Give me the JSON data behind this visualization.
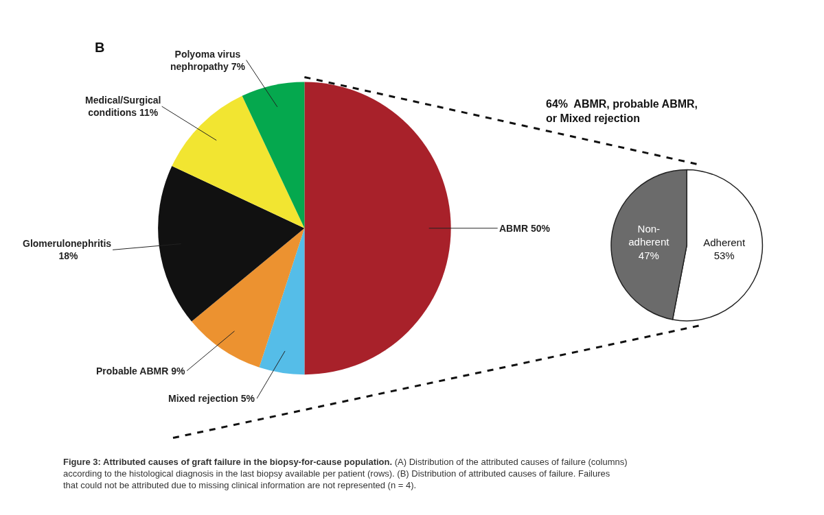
{
  "chart_data": [
    {
      "type": "pie",
      "title": "B",
      "categories": [
        "ABMR",
        "Mixed rejection",
        "Probable ABMR",
        "Glomerulonephritis\n",
        "Medical/Surgical\nconditions",
        "Polyoma virus\nnephropathy"
      ],
      "values": [
        50,
        5,
        9,
        18,
        11,
        7
      ],
      "colors": [
        "#a8212a",
        "#55bde8",
        "#ec9230",
        "#111111",
        "#f2e531",
        "#05a84e"
      ],
      "value_labels": [
        "50%",
        "5%",
        "9%",
        "18%",
        "11%",
        "7%"
      ],
      "annotations": [
        "Figure 3: Attributed causes of graft failure in the biopsy-for-cause population.",
        "(A) Distribution of the attributed causes of failure (columns) according to the histological diagnosis in the last biopsy available per patient (rows).  (B) Distribution of attributed causes of failure. Failures that could not be attributed due to missing clinical information are not represented (n = 4)."
      ]
    },
    {
      "type": "pie",
      "title": "64%  ABMR, probable ABMR,\nor Mixed rejection",
      "categories": [
        "Adherent",
        "Non-\nadherent"
      ],
      "values": [
        53,
        47
      ],
      "colors": [
        "#ffffff",
        "#6b6b6b"
      ],
      "value_labels": [
        "53%",
        "47%"
      ]
    }
  ]
}
